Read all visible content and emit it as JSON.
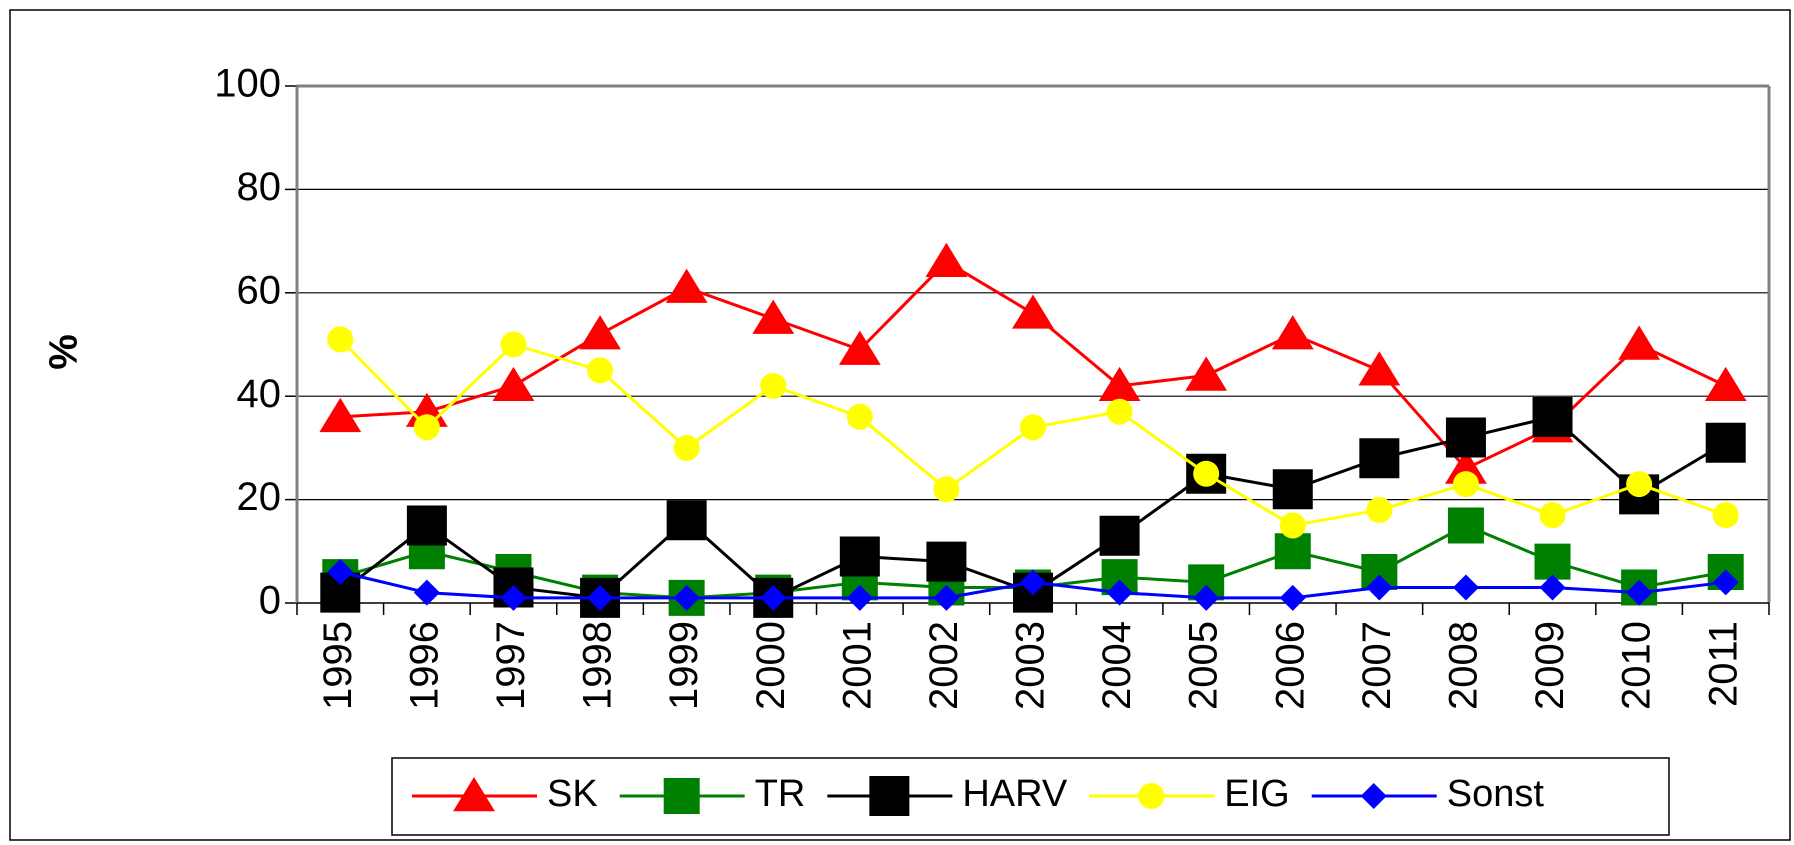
{
  "chart_data": {
    "type": "line",
    "y_label": "%",
    "categories": [
      "1995",
      "1996",
      "1997",
      "1998",
      "1999",
      "2000",
      "2001",
      "2002",
      "2003",
      "2004",
      "2005",
      "2006",
      "2007",
      "2008",
      "2009",
      "2010",
      "2011"
    ],
    "series": [
      {
        "name": "SK",
        "color": "#ff0000",
        "marker": "triangle",
        "values": [
          36,
          37,
          42,
          52,
          61,
          55,
          49,
          66,
          56,
          42,
          44,
          52,
          45,
          26,
          34,
          50,
          42
        ]
      },
      {
        "name": "TR",
        "color": "#008000",
        "marker": "square",
        "values": [
          5,
          10,
          6,
          2,
          1,
          2,
          4,
          3,
          3,
          5,
          4,
          10,
          6,
          15,
          8,
          3,
          6
        ]
      },
      {
        "name": "HARV",
        "color": "#000000",
        "marker": "square",
        "values": [
          2,
          15,
          3,
          1,
          16,
          1,
          9,
          8,
          2,
          13,
          25,
          22,
          28,
          32,
          36,
          21,
          31
        ]
      },
      {
        "name": "EIG",
        "color": "#ffff00",
        "marker": "circle",
        "values": [
          51,
          34,
          50,
          45,
          30,
          42,
          36,
          22,
          34,
          37,
          25,
          15,
          18,
          23,
          17,
          23,
          17
        ]
      },
      {
        "name": "Sonst",
        "color": "#0000ff",
        "marker": "diamond",
        "values": [
          6,
          2,
          1,
          1,
          1,
          1,
          1,
          1,
          4,
          2,
          1,
          1,
          3,
          3,
          3,
          2,
          4
        ]
      }
    ],
    "ylim": [
      0,
      100
    ],
    "yticks": [
      0,
      20,
      40,
      60,
      80,
      100
    ],
    "grid": true,
    "legend": "bottom"
  }
}
